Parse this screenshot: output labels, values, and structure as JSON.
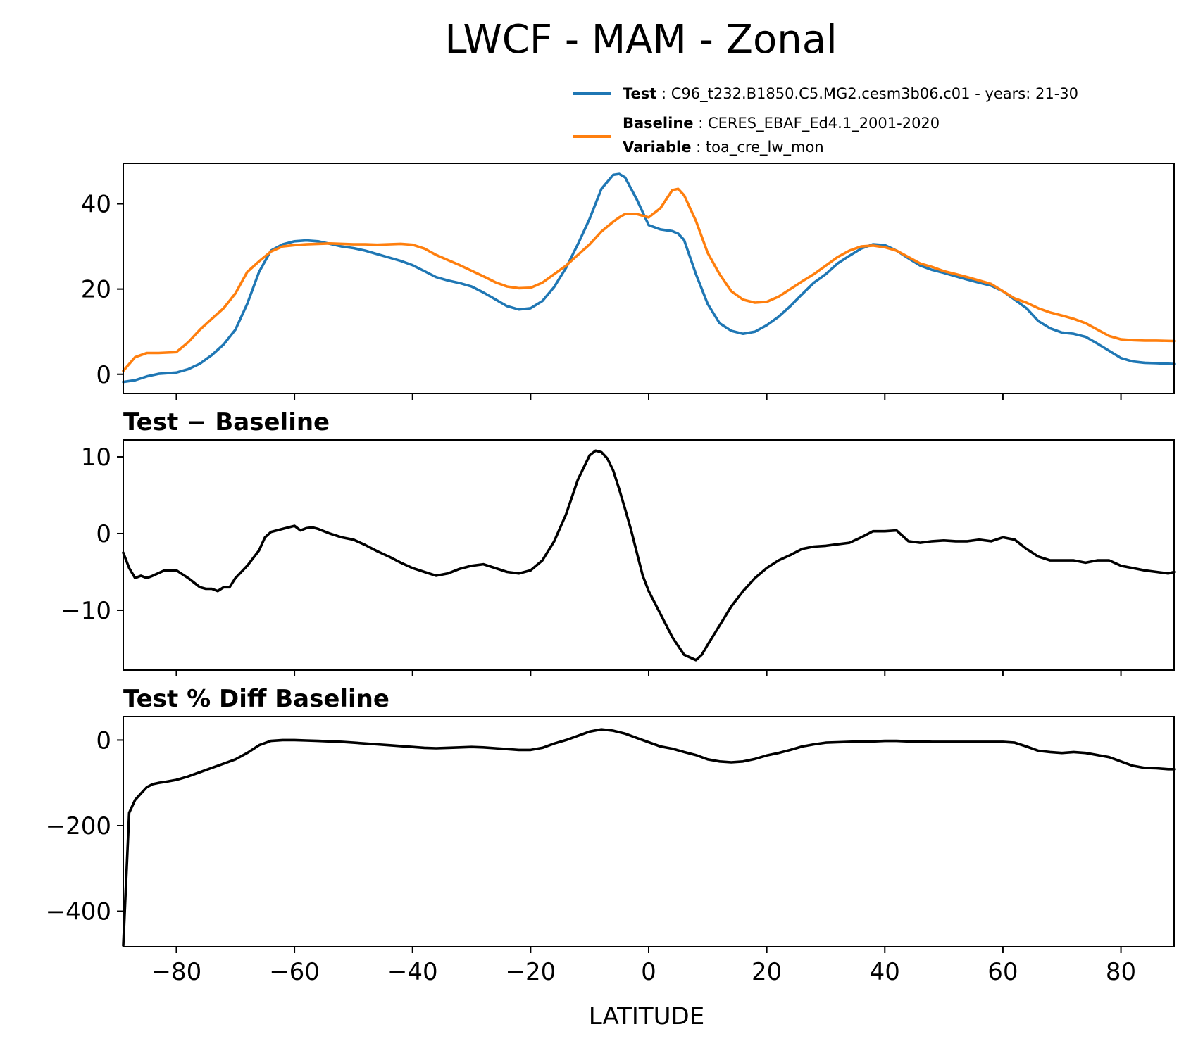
{
  "figure": {
    "title": "LWCF - MAM - Zonal",
    "legend": [
      {
        "key": "Test",
        "sep": " : ",
        "value": "C96_t232.B1850.C5.MG2.cesm3b06.c01 - years: 21-30",
        "color": "#1f77b4"
      },
      {
        "key": "Baseline",
        "sep": " : ",
        "value": "CERES_EBAF_Ed4.1_2001-2020",
        "color": "#ff7f0e"
      },
      {
        "key": "Variable",
        "sep": " : ",
        "value": "toa_cre_lw_mon"
      }
    ],
    "xlabel": "LATITUDE"
  },
  "chart_data": [
    {
      "type": "line",
      "title": "",
      "xlim": [
        -89,
        89
      ],
      "ylim": [
        -4.5,
        49.5
      ],
      "xticks": [
        -80,
        -60,
        -40,
        -20,
        0,
        20,
        40,
        60,
        80
      ],
      "yticks": [
        0,
        20,
        40
      ],
      "grid": false,
      "legend_position": "above",
      "series": [
        {
          "name": "Test",
          "color": "#1f77b4",
          "x": [
            -89,
            -87,
            -85,
            -83,
            -80,
            -78,
            -76,
            -74,
            -72,
            -70,
            -68,
            -66,
            -64,
            -62,
            -60,
            -58,
            -56,
            -54,
            -52,
            -50,
            -48,
            -46,
            -44,
            -42,
            -40,
            -38,
            -36,
            -34,
            -32,
            -30,
            -28,
            -26,
            -24,
            -22,
            -20,
            -18,
            -16,
            -14,
            -12,
            -10,
            -8,
            -6,
            -5,
            -4,
            -2,
            0,
            2,
            4,
            5,
            6,
            8,
            10,
            12,
            14,
            16,
            18,
            20,
            22,
            24,
            26,
            28,
            30,
            32,
            34,
            36,
            38,
            40,
            42,
            44,
            46,
            48,
            50,
            52,
            54,
            56,
            58,
            60,
            62,
            64,
            66,
            68,
            70,
            72,
            74,
            76,
            78,
            80,
            82,
            84,
            86,
            89
          ],
          "values": [
            -1.8,
            -1.4,
            -0.5,
            0.1,
            0.4,
            1.2,
            2.5,
            4.5,
            7.0,
            10.5,
            16.5,
            24.0,
            29.0,
            30.5,
            31.2,
            31.4,
            31.2,
            30.6,
            30.0,
            29.6,
            29.0,
            28.2,
            27.4,
            26.6,
            25.6,
            24.2,
            22.8,
            22.0,
            21.4,
            20.6,
            19.2,
            17.6,
            16.0,
            15.2,
            15.5,
            17.2,
            20.5,
            25.0,
            30.5,
            36.5,
            43.5,
            46.8,
            47.0,
            46.2,
            41.0,
            35.0,
            34.0,
            33.6,
            33.0,
            31.5,
            23.5,
            16.5,
            12.0,
            10.2,
            9.5,
            10.0,
            11.5,
            13.5,
            16.0,
            18.8,
            21.5,
            23.5,
            26.0,
            27.8,
            29.5,
            30.5,
            30.3,
            29.0,
            27.2,
            25.5,
            24.5,
            23.8,
            23.0,
            22.2,
            21.5,
            20.8,
            19.5,
            17.5,
            15.5,
            12.5,
            10.8,
            9.8,
            9.5,
            8.8,
            7.2,
            5.5,
            3.8,
            3.0,
            2.7,
            2.6,
            2.4
          ]
        },
        {
          "name": "Baseline",
          "color": "#ff7f0e",
          "x": [
            -89,
            -87,
            -85,
            -83,
            -80,
            -78,
            -76,
            -74,
            -72,
            -70,
            -68,
            -66,
            -64,
            -62,
            -60,
            -58,
            -56,
            -54,
            -52,
            -50,
            -48,
            -46,
            -44,
            -42,
            -40,
            -38,
            -36,
            -34,
            -32,
            -30,
            -28,
            -26,
            -24,
            -22,
            -20,
            -18,
            -16,
            -14,
            -12,
            -10,
            -8,
            -6,
            -5,
            -4,
            -2,
            0,
            2,
            4,
            5,
            6,
            8,
            10,
            12,
            14,
            16,
            18,
            20,
            22,
            24,
            26,
            28,
            30,
            32,
            34,
            36,
            38,
            40,
            42,
            44,
            46,
            48,
            50,
            52,
            54,
            56,
            58,
            60,
            62,
            64,
            66,
            68,
            70,
            72,
            74,
            76,
            78,
            80,
            82,
            84,
            86,
            89
          ],
          "values": [
            0.8,
            4.0,
            5.0,
            5.0,
            5.2,
            7.5,
            10.5,
            13.0,
            15.5,
            19.0,
            24.0,
            26.5,
            28.8,
            30.0,
            30.3,
            30.5,
            30.6,
            30.7,
            30.6,
            30.5,
            30.5,
            30.4,
            30.5,
            30.6,
            30.4,
            29.5,
            28.0,
            26.8,
            25.6,
            24.3,
            23.0,
            21.6,
            20.6,
            20.2,
            20.3,
            21.5,
            23.5,
            25.5,
            28.0,
            30.5,
            33.5,
            35.8,
            36.8,
            37.6,
            37.6,
            36.8,
            39.0,
            43.2,
            43.5,
            42.0,
            36.0,
            28.5,
            23.5,
            19.5,
            17.5,
            16.8,
            17.0,
            18.2,
            20.0,
            21.8,
            23.5,
            25.5,
            27.5,
            29.0,
            30.0,
            30.2,
            29.8,
            29.0,
            27.5,
            26.0,
            25.2,
            24.2,
            23.5,
            22.8,
            22.0,
            21.2,
            19.5,
            17.8,
            16.8,
            15.5,
            14.5,
            13.8,
            13.0,
            12.0,
            10.5,
            9.0,
            8.2,
            8.0,
            7.9,
            7.9,
            7.8
          ]
        }
      ]
    },
    {
      "type": "line",
      "title": "Test − Baseline",
      "xlim": [
        -89,
        89
      ],
      "ylim": [
        -17.8,
        12.2
      ],
      "xticks": [
        -80,
        -60,
        -40,
        -20,
        0,
        20,
        40,
        60,
        80
      ],
      "yticks": [
        10,
        0,
        -10
      ],
      "grid": false,
      "series": [
        {
          "color": "#000000",
          "x": [
            -89,
            -88,
            -87,
            -86,
            -85,
            -84,
            -82,
            -80,
            -78,
            -76,
            -75,
            -74,
            -73,
            -72,
            -71,
            -70,
            -68,
            -66,
            -65,
            -64,
            -62,
            -60,
            -59,
            -58,
            -57,
            -56,
            -54,
            -52,
            -50,
            -48,
            -46,
            -44,
            -42,
            -40,
            -38,
            -36,
            -34,
            -32,
            -30,
            -28,
            -26,
            -24,
            -22,
            -20,
            -18,
            -16,
            -14,
            -12,
            -10,
            -9,
            -8,
            -7,
            -6,
            -5,
            -4,
            -3,
            -2,
            -1,
            0,
            2,
            4,
            6,
            8,
            9,
            10,
            12,
            14,
            16,
            18,
            20,
            22,
            24,
            26,
            28,
            30,
            32,
            34,
            36,
            38,
            40,
            42,
            44,
            46,
            48,
            50,
            52,
            54,
            56,
            58,
            60,
            62,
            64,
            66,
            68,
            70,
            72,
            74,
            76,
            78,
            80,
            82,
            84,
            86,
            88,
            89
          ],
          "values": [
            -2.5,
            -4.5,
            -5.8,
            -5.5,
            -5.8,
            -5.5,
            -4.8,
            -4.8,
            -5.8,
            -7.0,
            -7.2,
            -7.2,
            -7.5,
            -7.0,
            -7.0,
            -5.8,
            -4.2,
            -2.2,
            -0.5,
            0.2,
            0.6,
            1.0,
            0.4,
            0.7,
            0.8,
            0.6,
            0.0,
            -0.5,
            -0.8,
            -1.5,
            -2.3,
            -3.0,
            -3.8,
            -4.5,
            -5.0,
            -5.5,
            -5.2,
            -4.6,
            -4.2,
            -4.0,
            -4.5,
            -5.0,
            -5.2,
            -4.8,
            -3.5,
            -1.0,
            2.5,
            7.0,
            10.2,
            10.8,
            10.6,
            9.8,
            8.2,
            5.8,
            3.2,
            0.5,
            -2.5,
            -5.5,
            -7.5,
            -10.5,
            -13.5,
            -15.8,
            -16.5,
            -15.8,
            -14.5,
            -12.0,
            -9.5,
            -7.5,
            -5.8,
            -4.5,
            -3.5,
            -2.8,
            -2.0,
            -1.7,
            -1.6,
            -1.4,
            -1.2,
            -0.5,
            0.3,
            0.3,
            0.4,
            -1.0,
            -1.2,
            -1.0,
            -0.9,
            -1.0,
            -1.0,
            -0.8,
            -1.0,
            -0.5,
            -0.8,
            -2.0,
            -3.0,
            -3.5,
            -3.5,
            -3.5,
            -3.8,
            -3.5,
            -3.5,
            -4.2,
            -4.5,
            -4.8,
            -5.0,
            -5.2,
            -5.0
          ]
        }
      ]
    },
    {
      "type": "line",
      "title": "Test % Diff Baseline",
      "xlim": [
        -89,
        89
      ],
      "ylim": [
        -483,
        55
      ],
      "xticks": [
        -80,
        -60,
        -40,
        -20,
        0,
        20,
        40,
        60,
        80
      ],
      "yticks": [
        0,
        -200,
        -400
      ],
      "grid": false,
      "series": [
        {
          "color": "#000000",
          "x": [
            -89,
            -88,
            -87,
            -86,
            -85,
            -84,
            -83,
            -82,
            -80,
            -78,
            -76,
            -74,
            -72,
            -70,
            -68,
            -66,
            -64,
            -62,
            -60,
            -58,
            -56,
            -54,
            -52,
            -50,
            -48,
            -46,
            -44,
            -42,
            -40,
            -38,
            -36,
            -34,
            -32,
            -30,
            -28,
            -26,
            -24,
            -22,
            -20,
            -18,
            -16,
            -14,
            -12,
            -10,
            -8,
            -6,
            -4,
            -2,
            0,
            2,
            4,
            6,
            8,
            10,
            12,
            14,
            16,
            18,
            20,
            22,
            24,
            26,
            28,
            30,
            32,
            34,
            36,
            38,
            40,
            42,
            44,
            46,
            48,
            50,
            52,
            54,
            56,
            58,
            60,
            62,
            64,
            66,
            68,
            70,
            72,
            74,
            76,
            78,
            80,
            82,
            84,
            86,
            88,
            89
          ],
          "values": [
            -480,
            -170,
            -140,
            -125,
            -110,
            -103,
            -100,
            -98,
            -93,
            -85,
            -75,
            -65,
            -55,
            -45,
            -30,
            -12,
            -2,
            0,
            0,
            -1,
            -2,
            -3,
            -4,
            -6,
            -8,
            -10,
            -12,
            -14,
            -16,
            -18,
            -19,
            -18,
            -17,
            -16,
            -17,
            -19,
            -21,
            -23,
            -23,
            -18,
            -8,
            0,
            10,
            20,
            25,
            22,
            15,
            5,
            -5,
            -15,
            -20,
            -28,
            -35,
            -45,
            -50,
            -52,
            -50,
            -44,
            -36,
            -30,
            -23,
            -15,
            -10,
            -6,
            -5,
            -4,
            -3,
            -3,
            -2,
            -2,
            -3,
            -3,
            -4,
            -4,
            -4,
            -4,
            -4,
            -4,
            -4,
            -6,
            -15,
            -25,
            -28,
            -30,
            -28,
            -30,
            -35,
            -40,
            -50,
            -60,
            -65,
            -66,
            -68,
            -68
          ]
        }
      ]
    }
  ]
}
